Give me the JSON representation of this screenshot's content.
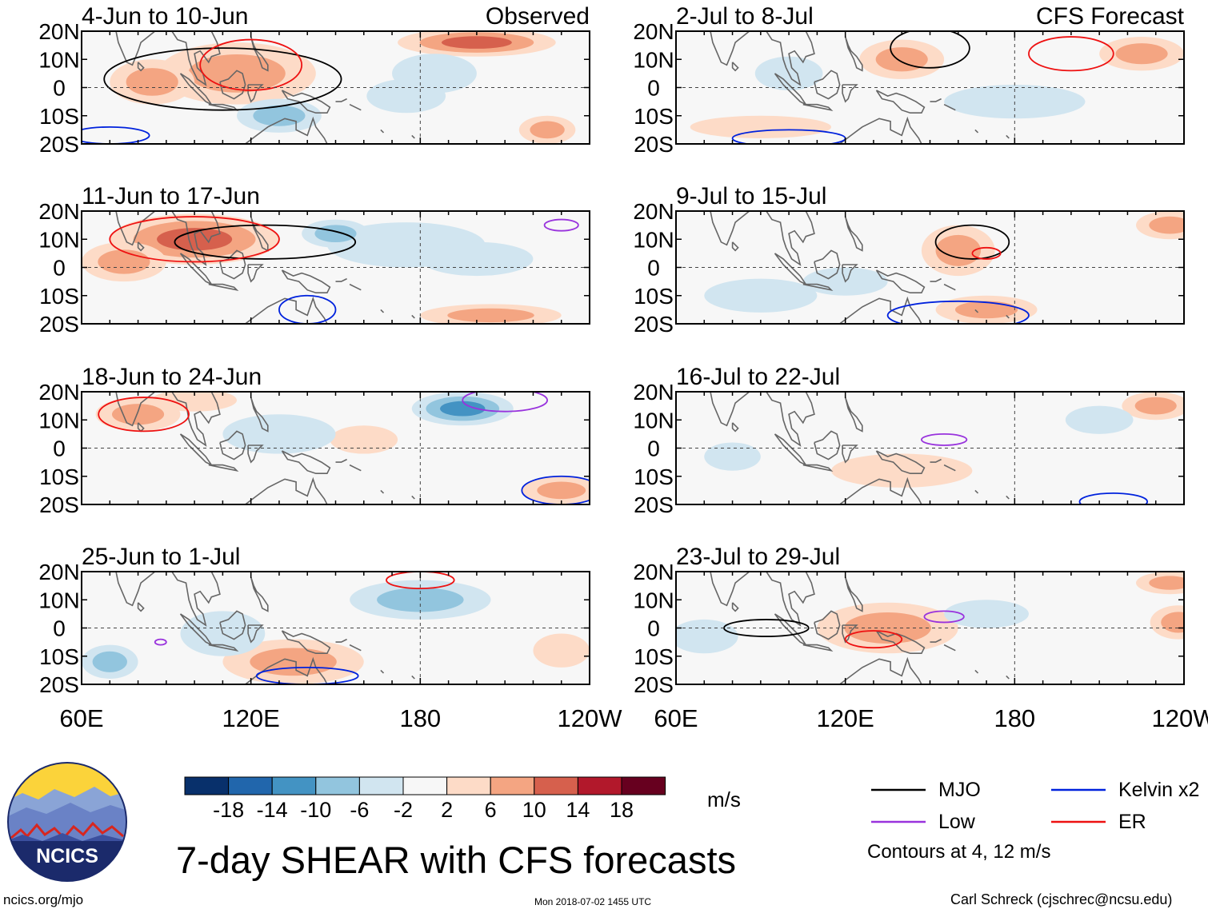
{
  "title": "7-day SHEAR with CFS forecasts",
  "units": "m/s",
  "contour_note": "Contours at 4, 12 m/s",
  "site": "ncics.org/mjo",
  "timestamp": "Mon 2018-07-02 1455 UTC",
  "credit": "Carl Schreck (cjschrec@ncsu.edu)",
  "logo": {
    "text": "NCICS",
    "colors": {
      "sky": "#fbd33a",
      "mountains": "#3b4f9e",
      "ring": "#1b2a6b",
      "peaks": "#d7261f"
    }
  },
  "colors": {
    "MJO": "#000000",
    "Low": "#9933dd",
    "Kelvin": "#0022dd",
    "ER": "#ee1111"
  },
  "chart_data": {
    "type": "heatmap",
    "variable": "7-day SHEAR",
    "units": "m/s",
    "yticks": [
      "20N",
      "10N",
      "0",
      "10S",
      "20S"
    ],
    "xticks": [
      "60E",
      "120E",
      "180",
      "120W"
    ],
    "ylim": [
      -20,
      20
    ],
    "xlim": [
      60,
      240
    ],
    "colorbar": {
      "tick_labels": [
        "-18",
        "-14",
        "-10",
        "-6",
        "-2",
        "2",
        "6",
        "10",
        "14",
        "18"
      ],
      "colors": [
        "#08306b",
        "#2166ac",
        "#4393c3",
        "#92c5de",
        "#d1e5f0",
        "#f7f7f7",
        "#fddbc7",
        "#f4a582",
        "#d6604d",
        "#b2182b",
        "#67001f"
      ]
    },
    "legend": [
      {
        "label": "MJO",
        "color": "#000000"
      },
      {
        "label": "Kelvin x2",
        "color": "#0022dd"
      },
      {
        "label": "Low",
        "color": "#9933dd"
      },
      {
        "label": "ER",
        "color": "#ee1111"
      }
    ],
    "columns": [
      {
        "name": "Observed",
        "label": "Observed"
      },
      {
        "name": "CFS Forecast",
        "label": "CFS Forecast"
      }
    ],
    "panels": [
      {
        "col": 0,
        "row": 0,
        "period": "4-Jun to 10-Jun",
        "blobs": [
          [
            115,
            5,
            28,
            11,
            10
          ],
          [
            85,
            2,
            15,
            8,
            8
          ],
          [
            200,
            16,
            28,
            5,
            14
          ],
          [
            130,
            -10,
            15,
            6,
            -7
          ],
          [
            175,
            -3,
            14,
            6,
            -4
          ],
          [
            225,
            -15,
            10,
            5,
            8
          ],
          [
            185,
            5,
            15,
            7,
            -3
          ]
        ],
        "contours": [
          {
            "type": "MJO",
            "lon": 110,
            "lat": 3,
            "rx": 42,
            "ry": 11
          },
          {
            "type": "ER",
            "lon": 120,
            "lat": 8,
            "rx": 18,
            "ry": 9
          },
          {
            "type": "Kelvin",
            "lon": 70,
            "lat": -17,
            "rx": 14,
            "ry": 3
          }
        ]
      },
      {
        "col": 0,
        "row": 1,
        "period": "11-Jun to 17-Jun",
        "blobs": [
          [
            100,
            10,
            30,
            9,
            14
          ],
          [
            75,
            2,
            15,
            7,
            7
          ],
          [
            175,
            8,
            28,
            8,
            -6
          ],
          [
            150,
            12,
            12,
            5,
            -8
          ],
          [
            205,
            -17,
            25,
            4,
            9
          ],
          [
            200,
            3,
            20,
            6,
            -3
          ]
        ],
        "contours": [
          {
            "type": "MJO",
            "lon": 125,
            "lat": 9,
            "rx": 32,
            "ry": 6
          },
          {
            "type": "ER",
            "lon": 100,
            "lat": 10,
            "rx": 30,
            "ry": 8
          },
          {
            "type": "Kelvin",
            "lon": 140,
            "lat": -15,
            "rx": 10,
            "ry": 5
          },
          {
            "type": "Low",
            "lon": 230,
            "lat": 15,
            "rx": 6,
            "ry": 2
          }
        ]
      },
      {
        "col": 0,
        "row": 2,
        "period": "18-Jun to 24-Jun",
        "blobs": [
          [
            80,
            12,
            15,
            6,
            8
          ],
          [
            100,
            17,
            15,
            4,
            6
          ],
          [
            195,
            14,
            18,
            6,
            -12
          ],
          [
            160,
            3,
            12,
            5,
            6
          ],
          [
            230,
            -15,
            14,
            5,
            10
          ],
          [
            130,
            5,
            20,
            7,
            -6
          ]
        ],
        "contours": [
          {
            "type": "ER",
            "lon": 82,
            "lat": 12,
            "rx": 16,
            "ry": 6
          },
          {
            "type": "Kelvin",
            "lon": 230,
            "lat": -15,
            "rx": 14,
            "ry": 5
          },
          {
            "type": "Low",
            "lon": 210,
            "lat": 17,
            "rx": 15,
            "ry": 4
          }
        ]
      },
      {
        "col": 0,
        "row": 3,
        "period": "25-Jun to 1-Jul",
        "blobs": [
          [
            135,
            -12,
            25,
            8,
            10
          ],
          [
            180,
            10,
            25,
            7,
            -8
          ],
          [
            70,
            -12,
            10,
            6,
            -7
          ],
          [
            110,
            -2,
            15,
            8,
            -5
          ],
          [
            230,
            -8,
            10,
            6,
            4
          ]
        ],
        "contours": [
          {
            "type": "ER",
            "lon": 180,
            "lat": 17,
            "rx": 12,
            "ry": 3
          },
          {
            "type": "Kelvin",
            "lon": 140,
            "lat": -17,
            "rx": 18,
            "ry": 3
          },
          {
            "type": "Low",
            "lon": 88,
            "lat": -5,
            "rx": 2,
            "ry": 1
          }
        ]
      },
      {
        "col": 1,
        "row": 0,
        "period": "2-Jul to 8-Jul",
        "blobs": [
          [
            140,
            10,
            15,
            7,
            8
          ],
          [
            225,
            12,
            15,
            6,
            7
          ],
          [
            90,
            -14,
            25,
            4,
            4
          ],
          [
            180,
            -5,
            25,
            6,
            -3
          ],
          [
            100,
            5,
            12,
            6,
            -4
          ]
        ],
        "contours": [
          {
            "type": "MJO",
            "lon": 150,
            "lat": 14,
            "rx": 14,
            "ry": 7
          },
          {
            "type": "ER",
            "lon": 200,
            "lat": 12,
            "rx": 15,
            "ry": 6
          },
          {
            "type": "Kelvin",
            "lon": 100,
            "lat": -18,
            "rx": 20,
            "ry": 3
          }
        ]
      },
      {
        "col": 1,
        "row": 1,
        "period": "9-Jul to 15-Jul",
        "blobs": [
          [
            160,
            6,
            13,
            9,
            10
          ],
          [
            235,
            15,
            12,
            5,
            9
          ],
          [
            170,
            -15,
            18,
            5,
            7
          ],
          [
            90,
            -10,
            20,
            6,
            -3
          ],
          [
            120,
            -5,
            15,
            5,
            -3
          ]
        ],
        "contours": [
          {
            "type": "MJO",
            "lon": 165,
            "lat": 9,
            "rx": 13,
            "ry": 6
          },
          {
            "type": "ER",
            "lon": 170,
            "lat": 5,
            "rx": 5,
            "ry": 2
          },
          {
            "type": "Kelvin",
            "lon": 160,
            "lat": -17,
            "rx": 25,
            "ry": 5
          }
        ]
      },
      {
        "col": 1,
        "row": 2,
        "period": "16-Jul to 22-Jul",
        "blobs": [
          [
            230,
            15,
            12,
            5,
            7
          ],
          [
            140,
            -8,
            25,
            6,
            3
          ],
          [
            80,
            -3,
            10,
            5,
            -3
          ],
          [
            210,
            10,
            12,
            5,
            -3
          ]
        ],
        "contours": [
          {
            "type": "Low",
            "lon": 155,
            "lat": 3,
            "rx": 8,
            "ry": 2
          },
          {
            "type": "Kelvin",
            "lon": 215,
            "lat": -19,
            "rx": 12,
            "ry": 3
          }
        ]
      },
      {
        "col": 1,
        "row": 3,
        "period": "23-Jul to 29-Jul",
        "blobs": [
          [
            135,
            0,
            25,
            9,
            9
          ],
          [
            238,
            2,
            10,
            6,
            8
          ],
          [
            235,
            16,
            12,
            4,
            7
          ],
          [
            170,
            5,
            15,
            5,
            -4
          ],
          [
            70,
            -3,
            12,
            6,
            -4
          ]
        ],
        "contours": [
          {
            "type": "MJO",
            "lon": 92,
            "lat": 0,
            "rx": 15,
            "ry": 3
          },
          {
            "type": "ER",
            "lon": 130,
            "lat": -4,
            "rx": 10,
            "ry": 3
          },
          {
            "type": "Low",
            "lon": 155,
            "lat": 4,
            "rx": 7,
            "ry": 2
          }
        ]
      }
    ]
  }
}
